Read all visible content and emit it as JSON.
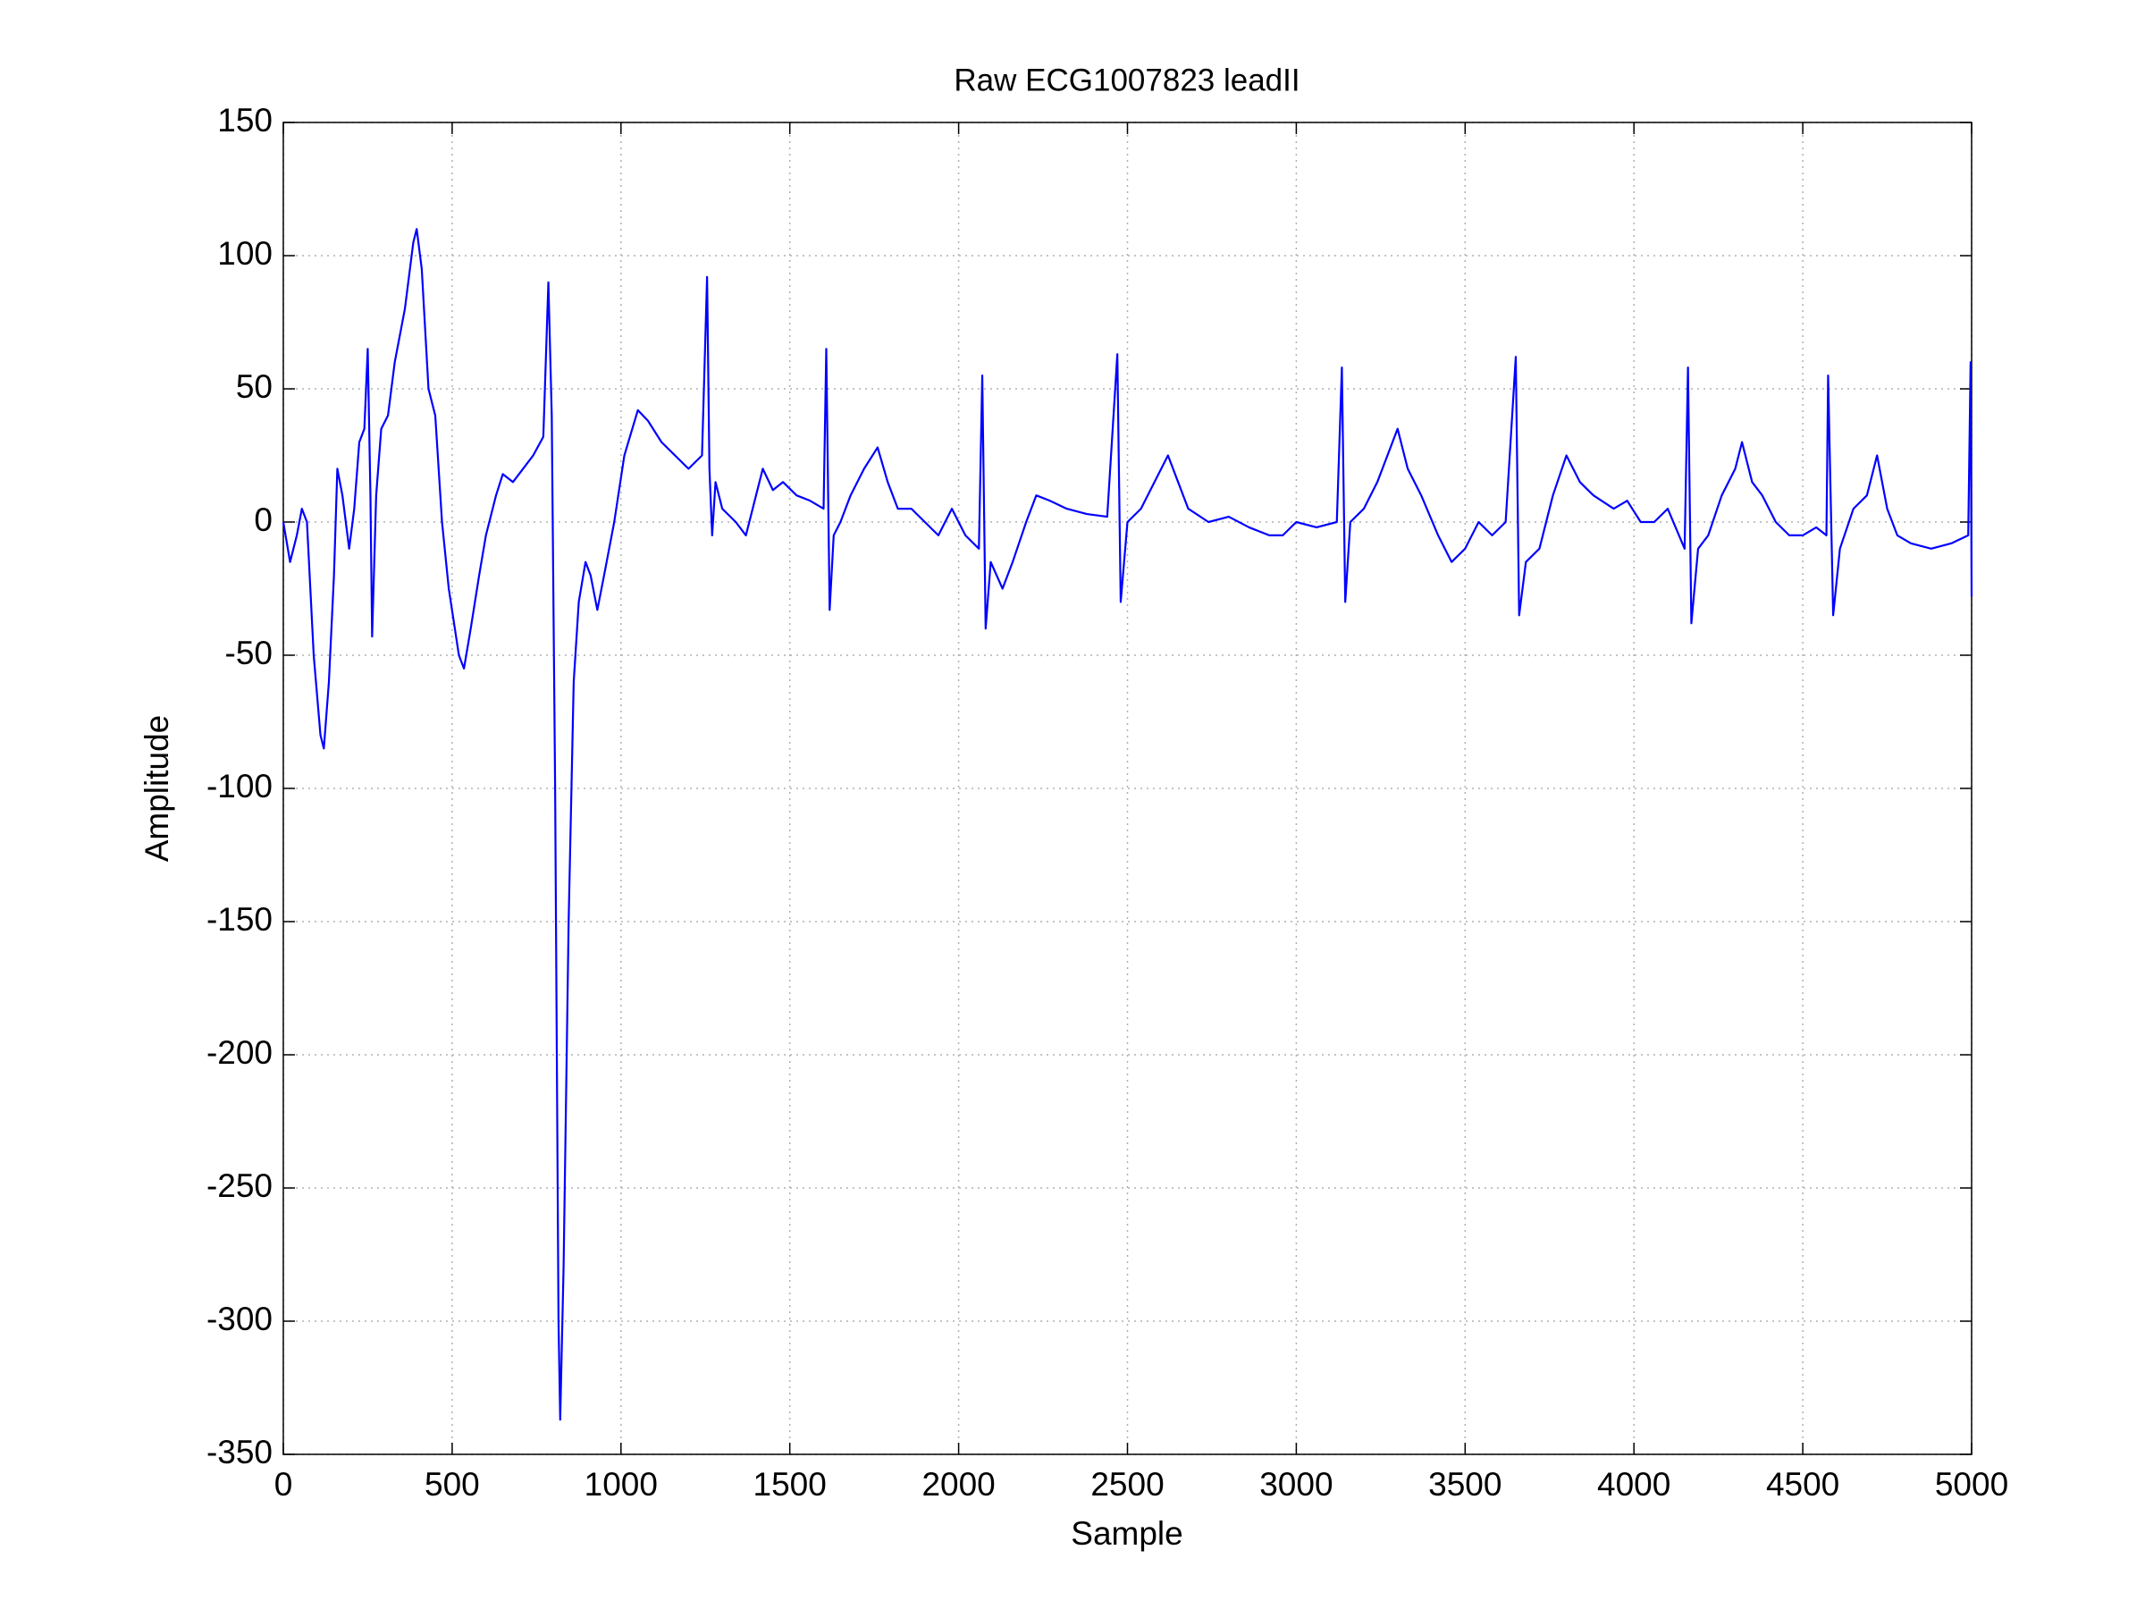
{
  "chart_data": {
    "type": "line",
    "title": "Raw ECG1007823 leadII",
    "xlabel": "Sample",
    "ylabel": "Amplitude",
    "color": "#0000ff",
    "grid": true,
    "xlim": [
      0,
      5000
    ],
    "xticks": [
      0,
      500,
      1000,
      1500,
      2000,
      2500,
      3000,
      3500,
      4000,
      4500,
      5000
    ],
    "ylim": [
      -350,
      150
    ],
    "yticks": [
      -350,
      -300,
      -250,
      -200,
      -150,
      -100,
      -50,
      0,
      50,
      100,
      150
    ],
    "x": [
      0,
      20,
      40,
      55,
      70,
      90,
      110,
      120,
      135,
      150,
      160,
      175,
      195,
      210,
      225,
      240,
      250,
      258,
      263,
      275,
      290,
      310,
      330,
      360,
      385,
      395,
      410,
      430,
      450,
      470,
      490,
      520,
      535,
      555,
      580,
      600,
      630,
      650,
      680,
      710,
      740,
      770,
      785,
      795,
      805,
      815,
      820,
      830,
      845,
      860,
      875,
      895,
      910,
      930,
      950,
      980,
      1010,
      1050,
      1080,
      1120,
      1160,
      1200,
      1240,
      1255,
      1262,
      1270,
      1280,
      1300,
      1340,
      1370,
      1400,
      1420,
      1450,
      1480,
      1520,
      1560,
      1600,
      1608,
      1618,
      1630,
      1650,
      1680,
      1720,
      1760,
      1790,
      1820,
      1860,
      1900,
      1940,
      1980,
      2020,
      2060,
      2070,
      2080,
      2095,
      2130,
      2160,
      2200,
      2230,
      2270,
      2320,
      2380,
      2440,
      2470,
      2480,
      2500,
      2540,
      2580,
      2620,
      2650,
      2680,
      2740,
      2800,
      2860,
      2920,
      2960,
      3000,
      3060,
      3120,
      3135,
      3145,
      3160,
      3200,
      3240,
      3270,
      3300,
      3330,
      3370,
      3420,
      3460,
      3500,
      3540,
      3580,
      3620,
      3650,
      3660,
      3680,
      3720,
      3760,
      3800,
      3840,
      3880,
      3940,
      3980,
      4020,
      4060,
      4100,
      4150,
      4160,
      4170,
      4190,
      4220,
      4260,
      4300,
      4320,
      4350,
      4380,
      4420,
      4460,
      4500,
      4540,
      4570,
      4575,
      4590,
      4610,
      4650,
      4690,
      4720,
      4750,
      4780,
      4820,
      4880,
      4940,
      4990,
      4997,
      5000
    ],
    "values": [
      0,
      -15,
      -5,
      5,
      0,
      -50,
      -80,
      -85,
      -60,
      -20,
      20,
      10,
      -10,
      5,
      30,
      35,
      65,
      10,
      -43,
      10,
      35,
      40,
      60,
      80,
      105,
      110,
      95,
      50,
      40,
      0,
      -25,
      -50,
      -55,
      -40,
      -20,
      -5,
      10,
      18,
      15,
      20,
      25,
      32,
      90,
      40,
      -100,
      -300,
      -337,
      -280,
      -150,
      -60,
      -30,
      -15,
      -20,
      -33,
      -20,
      0,
      25,
      42,
      38,
      30,
      25,
      20,
      25,
      92,
      20,
      -5,
      15,
      5,
      0,
      -5,
      10,
      20,
      12,
      15,
      10,
      8,
      5,
      65,
      -33,
      -5,
      0,
      10,
      20,
      28,
      15,
      5,
      5,
      0,
      -5,
      5,
      -5,
      -10,
      55,
      -40,
      -15,
      -25,
      -15,
      0,
      10,
      8,
      5,
      3,
      2,
      63,
      -30,
      0,
      5,
      15,
      25,
      15,
      5,
      0,
      2,
      -2,
      -5,
      -5,
      0,
      -2,
      0,
      58,
      -30,
      0,
      5,
      15,
      25,
      35,
      20,
      10,
      -5,
      -15,
      -10,
      0,
      -5,
      0,
      62,
      -35,
      -15,
      -10,
      10,
      25,
      15,
      10,
      5,
      8,
      0,
      0,
      5,
      -10,
      58,
      -38,
      -10,
      -5,
      10,
      20,
      30,
      15,
      10,
      0,
      -5,
      -5,
      -2,
      -5,
      55,
      -35,
      -10,
      5,
      10,
      25,
      5,
      -5,
      -8,
      -10,
      -8,
      -5,
      60,
      -28
    ]
  }
}
